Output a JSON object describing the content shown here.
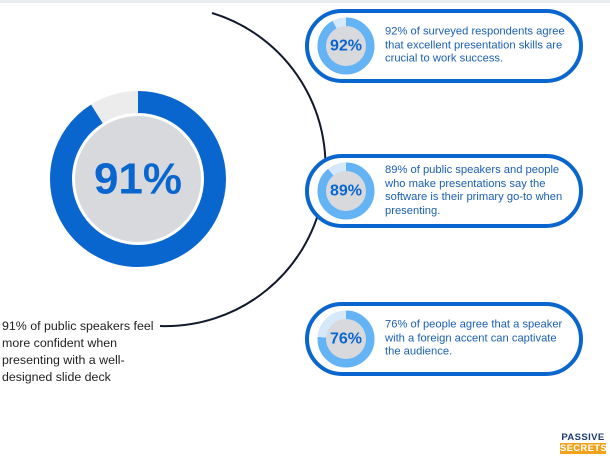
{
  "chart_data": {
    "type": "donut",
    "main": {
      "value": 91,
      "label": "91%",
      "caption": "91% of public speakers feel more confident when presenting with a well-designed slide deck"
    },
    "cards": [
      {
        "value": 92,
        "label": "92%",
        "text": "92% of surveyed respondents agree that excellent presentation skills are crucial to work success."
      },
      {
        "value": 89,
        "label": "89%",
        "text": "89% of public speakers and people who make presentations say the software is their primary go-to when presenting."
      },
      {
        "value": 76,
        "label": "76%",
        "text": "76% of people agree that a speaker with a foreign accent can captivate the audience."
      }
    ],
    "colors": {
      "primary": "#0a66cf",
      "track": "#ececec",
      "inner": "#d7d9dd",
      "card_ring": "#63b3f5",
      "card_track": "#d5e9fb",
      "text": "#1a5fb4",
      "logo_navy": "#1f3b70",
      "logo_orange": "#f0a21a"
    }
  },
  "logo": {
    "top": "PASSIVE",
    "bottom": "SECRETS"
  }
}
